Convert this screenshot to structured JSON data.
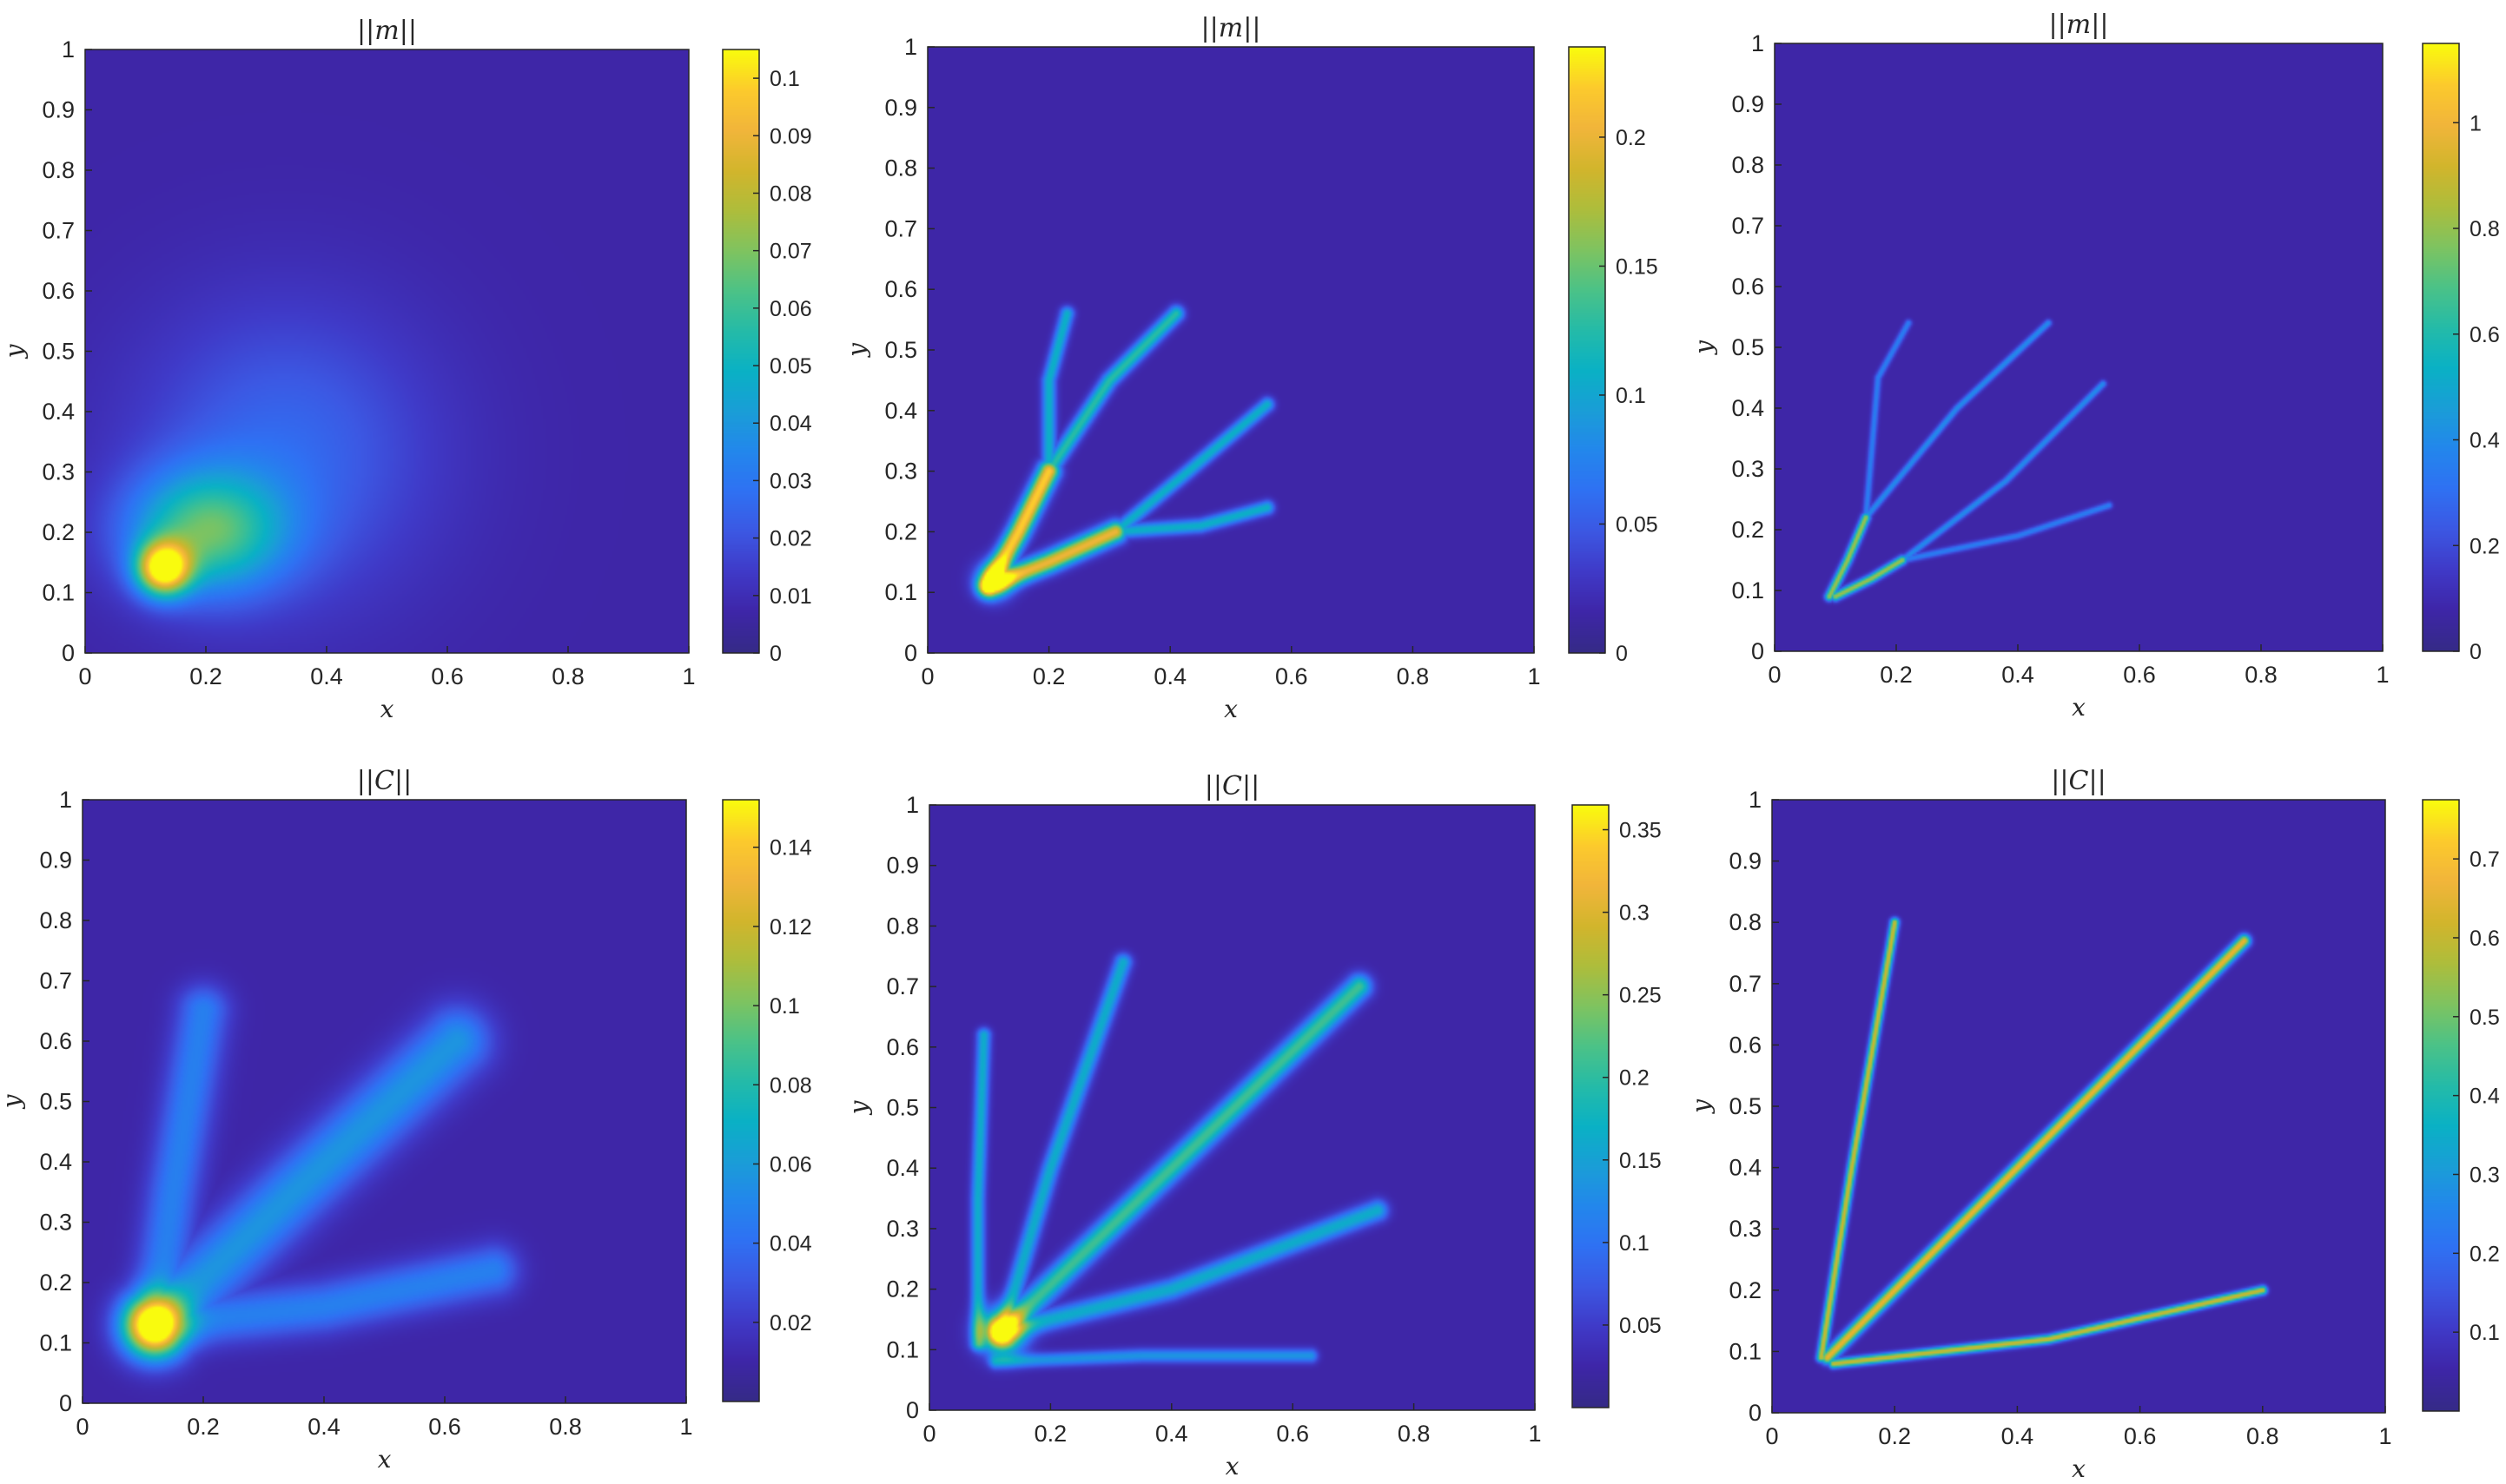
{
  "chart_data": [
    {
      "type": "heatmap",
      "title": "||m||",
      "xlabel": "x",
      "ylabel": "y",
      "xlim": [
        0,
        1
      ],
      "ylim": [
        0,
        1
      ],
      "x_ticks": [
        "0",
        "0.2",
        "0.4",
        "0.6",
        "0.8",
        "1"
      ],
      "y_ticks": [
        "0",
        "0.1",
        "0.2",
        "0.3",
        "0.4",
        "0.5",
        "0.6",
        "0.7",
        "0.8",
        "0.9",
        "1"
      ],
      "colormap": "parula",
      "background_color": "#3e26a8",
      "colorbar": {
        "min": 0,
        "max": 0.105,
        "tick_values": [
          0,
          0.01,
          0.02,
          0.03,
          0.04,
          0.05,
          0.06,
          0.07,
          0.08,
          0.09,
          0.1
        ],
        "tick_labels": [
          "0",
          "0.01",
          "0.02",
          "0.03",
          "0.04",
          "0.05",
          "0.06",
          "0.07",
          "0.08",
          "0.09",
          "0.1"
        ]
      },
      "features": [
        {
          "kind": "blob",
          "cx": 0.13,
          "cy": 0.14,
          "rx": 0.03,
          "ry": 0.03,
          "value": 0.1
        },
        {
          "kind": "blob",
          "cx": 0.2,
          "cy": 0.2,
          "rx": 0.09,
          "ry": 0.07,
          "value": 0.055
        },
        {
          "kind": "blob",
          "cx": 0.33,
          "cy": 0.33,
          "rx": 0.17,
          "ry": 0.17,
          "value": 0.02
        }
      ]
    },
    {
      "type": "heatmap",
      "title": "||m||",
      "xlabel": "x",
      "ylabel": "y",
      "xlim": [
        0,
        1
      ],
      "ylim": [
        0,
        1
      ],
      "x_ticks": [
        "0",
        "0.2",
        "0.4",
        "0.6",
        "0.8",
        "1"
      ],
      "y_ticks": [
        "0",
        "0.1",
        "0.2",
        "0.3",
        "0.4",
        "0.5",
        "0.6",
        "0.7",
        "0.8",
        "0.9",
        "1"
      ],
      "colormap": "parula",
      "background_color": "#3e26a8",
      "colorbar": {
        "min": 0,
        "max": 0.235,
        "tick_values": [
          0,
          0.05,
          0.1,
          0.15,
          0.2
        ],
        "tick_labels": [
          "0",
          "0.05",
          "0.1",
          "0.15",
          "0.2"
        ]
      },
      "features": [
        {
          "kind": "branch",
          "points": [
            [
              0.1,
              0.11
            ],
            [
              0.15,
              0.2
            ],
            [
              0.2,
              0.3
            ]
          ],
          "width": 0.012,
          "value": 0.22
        },
        {
          "kind": "branch",
          "points": [
            [
              0.2,
              0.3
            ],
            [
              0.3,
              0.45
            ],
            [
              0.41,
              0.56
            ]
          ],
          "width": 0.009,
          "value": 0.12
        },
        {
          "kind": "branch",
          "points": [
            [
              0.2,
              0.3
            ],
            [
              0.2,
              0.45
            ],
            [
              0.23,
              0.56
            ]
          ],
          "width": 0.008,
          "value": 0.1
        },
        {
          "kind": "branch",
          "points": [
            [
              0.1,
              0.11
            ],
            [
              0.2,
              0.15
            ],
            [
              0.31,
              0.2
            ]
          ],
          "width": 0.012,
          "value": 0.2
        },
        {
          "kind": "branch",
          "points": [
            [
              0.31,
              0.2
            ],
            [
              0.43,
              0.3
            ],
            [
              0.56,
              0.41
            ]
          ],
          "width": 0.008,
          "value": 0.1
        },
        {
          "kind": "branch",
          "points": [
            [
              0.31,
              0.2
            ],
            [
              0.45,
              0.21
            ],
            [
              0.56,
              0.24
            ]
          ],
          "width": 0.008,
          "value": 0.1
        },
        {
          "kind": "blob",
          "cx": 0.11,
          "cy": 0.12,
          "rx": 0.02,
          "ry": 0.02,
          "value": 0.15
        }
      ]
    },
    {
      "type": "heatmap",
      "title": "||m||",
      "xlabel": "x",
      "ylabel": "y",
      "xlim": [
        0,
        1
      ],
      "ylim": [
        0,
        1
      ],
      "x_ticks": [
        "0",
        "0.2",
        "0.4",
        "0.6",
        "0.8",
        "1"
      ],
      "y_ticks": [
        "0",
        "0.1",
        "0.2",
        "0.3",
        "0.4",
        "0.5",
        "0.6",
        "0.7",
        "0.8",
        "0.9",
        "1"
      ],
      "colormap": "parula",
      "background_color": "#3e26a8",
      "colorbar": {
        "min": 0,
        "max": 1.15,
        "tick_values": [
          0,
          0.2,
          0.4,
          0.6,
          0.8,
          1
        ],
        "tick_labels": [
          "0",
          "0.2",
          "0.4",
          "0.6",
          "0.8",
          "1"
        ]
      },
      "features": [
        {
          "kind": "branch",
          "points": [
            [
              0.09,
              0.09
            ],
            [
              0.12,
              0.15
            ],
            [
              0.15,
              0.22
            ]
          ],
          "width": 0.005,
          "value": 0.8
        },
        {
          "kind": "branch",
          "points": [
            [
              0.15,
              0.22
            ],
            [
              0.3,
              0.4
            ],
            [
              0.45,
              0.54
            ]
          ],
          "width": 0.004,
          "value": 0.35
        },
        {
          "kind": "branch",
          "points": [
            [
              0.15,
              0.22
            ],
            [
              0.17,
              0.45
            ],
            [
              0.22,
              0.54
            ]
          ],
          "width": 0.004,
          "value": 0.3
        },
        {
          "kind": "branch",
          "points": [
            [
              0.1,
              0.09
            ],
            [
              0.16,
              0.12
            ],
            [
              0.21,
              0.15
            ]
          ],
          "width": 0.005,
          "value": 0.8
        },
        {
          "kind": "branch",
          "points": [
            [
              0.21,
              0.15
            ],
            [
              0.38,
              0.28
            ],
            [
              0.54,
              0.44
            ]
          ],
          "width": 0.004,
          "value": 0.35
        },
        {
          "kind": "branch",
          "points": [
            [
              0.21,
              0.15
            ],
            [
              0.4,
              0.19
            ],
            [
              0.55,
              0.24
            ]
          ],
          "width": 0.004,
          "value": 0.3
        }
      ]
    },
    {
      "type": "heatmap",
      "title": "||C||",
      "xlabel": "x",
      "ylabel": "y",
      "xlim": [
        0,
        1
      ],
      "ylim": [
        0,
        1
      ],
      "x_ticks": [
        "0",
        "0.2",
        "0.4",
        "0.6",
        "0.8",
        "1"
      ],
      "y_ticks": [
        "0",
        "0.1",
        "0.2",
        "0.3",
        "0.4",
        "0.5",
        "0.6",
        "0.7",
        "0.8",
        "0.9",
        "1"
      ],
      "colormap": "parula",
      "background_color": "#3e26a8",
      "colorbar": {
        "min": 0,
        "max": 0.152,
        "tick_values": [
          0.02,
          0.04,
          0.06,
          0.08,
          0.1,
          0.12,
          0.14
        ],
        "tick_labels": [
          "0.02",
          "0.04",
          "0.06",
          "0.08",
          "0.1",
          "0.12",
          "0.14"
        ]
      },
      "features": [
        {
          "kind": "branch",
          "points": [
            [
              0.12,
              0.13
            ],
            [
              0.15,
              0.35
            ],
            [
              0.2,
              0.65
            ]
          ],
          "width": 0.03,
          "value": 0.04
        },
        {
          "kind": "branch",
          "points": [
            [
              0.12,
              0.13
            ],
            [
              0.35,
              0.35
            ],
            [
              0.62,
              0.6
            ]
          ],
          "width": 0.04,
          "value": 0.05
        },
        {
          "kind": "branch",
          "points": [
            [
              0.12,
              0.13
            ],
            [
              0.4,
              0.16
            ],
            [
              0.68,
              0.22
            ]
          ],
          "width": 0.03,
          "value": 0.04
        },
        {
          "kind": "blob",
          "cx": 0.12,
          "cy": 0.13,
          "rx": 0.035,
          "ry": 0.035,
          "value": 0.15
        }
      ]
    },
    {
      "type": "heatmap",
      "title": "||C||",
      "xlabel": "x",
      "ylabel": "y",
      "xlim": [
        0,
        1
      ],
      "ylim": [
        0,
        1
      ],
      "x_ticks": [
        "0",
        "0.2",
        "0.4",
        "0.6",
        "0.8",
        "1"
      ],
      "y_ticks": [
        "0",
        "0.1",
        "0.2",
        "0.3",
        "0.4",
        "0.5",
        "0.6",
        "0.7",
        "0.8",
        "0.9",
        "1"
      ],
      "colormap": "parula",
      "background_color": "#3e26a8",
      "colorbar": {
        "min": 0,
        "max": 0.365,
        "tick_values": [
          0.05,
          0.1,
          0.15,
          0.2,
          0.25,
          0.3,
          0.35
        ],
        "tick_labels": [
          "0.05",
          "0.1",
          "0.15",
          "0.2",
          "0.25",
          "0.3",
          "0.35"
        ]
      },
      "features": [
        {
          "kind": "branch",
          "points": [
            [
              0.08,
              0.11
            ],
            [
              0.08,
              0.35
            ],
            [
              0.09,
              0.62
            ]
          ],
          "width": 0.008,
          "value": 0.15
        },
        {
          "kind": "branch",
          "points": [
            [
              0.12,
              0.13
            ],
            [
              0.2,
              0.4
            ],
            [
              0.32,
              0.74
            ]
          ],
          "width": 0.01,
          "value": 0.15
        },
        {
          "kind": "branch",
          "points": [
            [
              0.12,
              0.13
            ],
            [
              0.4,
              0.4
            ],
            [
              0.71,
              0.7
            ]
          ],
          "width": 0.014,
          "value": 0.2
        },
        {
          "kind": "branch",
          "points": [
            [
              0.12,
              0.13
            ],
            [
              0.4,
              0.2
            ],
            [
              0.74,
              0.33
            ]
          ],
          "width": 0.012,
          "value": 0.15
        },
        {
          "kind": "branch",
          "points": [
            [
              0.11,
              0.08
            ],
            [
              0.35,
              0.09
            ],
            [
              0.63,
              0.09
            ]
          ],
          "width": 0.008,
          "value": 0.12
        },
        {
          "kind": "blob",
          "cx": 0.12,
          "cy": 0.13,
          "rx": 0.025,
          "ry": 0.025,
          "value": 0.35
        }
      ]
    },
    {
      "type": "heatmap",
      "title": "||C||",
      "xlabel": "x",
      "ylabel": "y",
      "xlim": [
        0,
        1
      ],
      "ylim": [
        0,
        1
      ],
      "x_ticks": [
        "0",
        "0.2",
        "0.4",
        "0.6",
        "0.8",
        "1"
      ],
      "y_ticks": [
        "0",
        "0.1",
        "0.2",
        "0.3",
        "0.4",
        "0.5",
        "0.6",
        "0.7",
        "0.8",
        "0.9",
        "1"
      ],
      "colormap": "parula",
      "background_color": "#3e26a8",
      "colorbar": {
        "min": 0,
        "max": 0.775,
        "tick_values": [
          0.1,
          0.2,
          0.3,
          0.4,
          0.5,
          0.6,
          0.7
        ],
        "tick_labels": [
          "0.1",
          "0.2",
          "0.3",
          "0.4",
          "0.5",
          "0.6",
          "0.7"
        ]
      },
      "features": [
        {
          "kind": "branch",
          "points": [
            [
              0.08,
              0.09
            ],
            [
              0.13,
              0.4
            ],
            [
              0.2,
              0.8
            ]
          ],
          "width": 0.005,
          "value": 0.6
        },
        {
          "kind": "branch",
          "points": [
            [
              0.09,
              0.09
            ],
            [
              0.4,
              0.4
            ],
            [
              0.77,
              0.77
            ]
          ],
          "width": 0.007,
          "value": 0.65
        },
        {
          "kind": "branch",
          "points": [
            [
              0.1,
              0.08
            ],
            [
              0.45,
              0.12
            ],
            [
              0.8,
              0.2
            ]
          ],
          "width": 0.005,
          "value": 0.6
        }
      ]
    }
  ]
}
